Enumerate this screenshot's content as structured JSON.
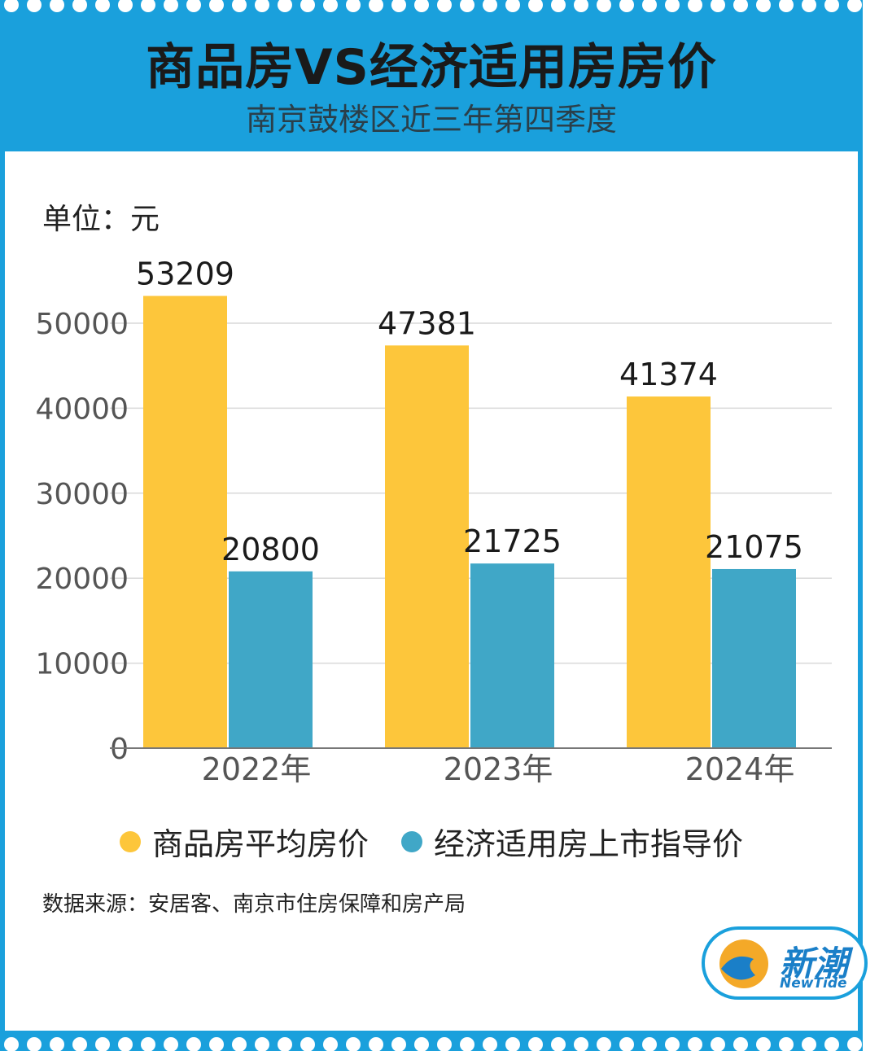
{
  "header": {
    "title": "商品房VS经济适用房房价",
    "subtitle": "南京鼓楼区近三年第四季度"
  },
  "unit_label": "单位：元",
  "source": "数据来源：安居客、南京市住房保障和房产局",
  "logo": {
    "name": "新潮",
    "sub": "NewTide"
  },
  "colors": {
    "frame_blue": "#1aa0dc",
    "bar_yellow": "#fdc63b",
    "bar_teal": "#40a7c7",
    "grid": "#d9d9d9"
  },
  "chart_data": {
    "type": "bar",
    "title": "商品房VS经济适用房房价",
    "subtitle": "南京鼓楼区近三年第四季度",
    "ylabel": "单位：元",
    "xlabel": "",
    "categories": [
      "2022年",
      "2023年",
      "2024年"
    ],
    "ylim": [
      0,
      50000
    ],
    "yticks": [
      "0",
      "10000",
      "20000",
      "30000",
      "40000",
      "50000"
    ],
    "grid": true,
    "legend_position": "bottom",
    "series": [
      {
        "name": "商品房平均房价",
        "color": "#fdc63b",
        "values": [
          53209,
          47381,
          41374
        ]
      },
      {
        "name": "经济适用房上市指导价",
        "color": "#40a7c7",
        "values": [
          20800,
          21725,
          21075
        ]
      }
    ]
  }
}
